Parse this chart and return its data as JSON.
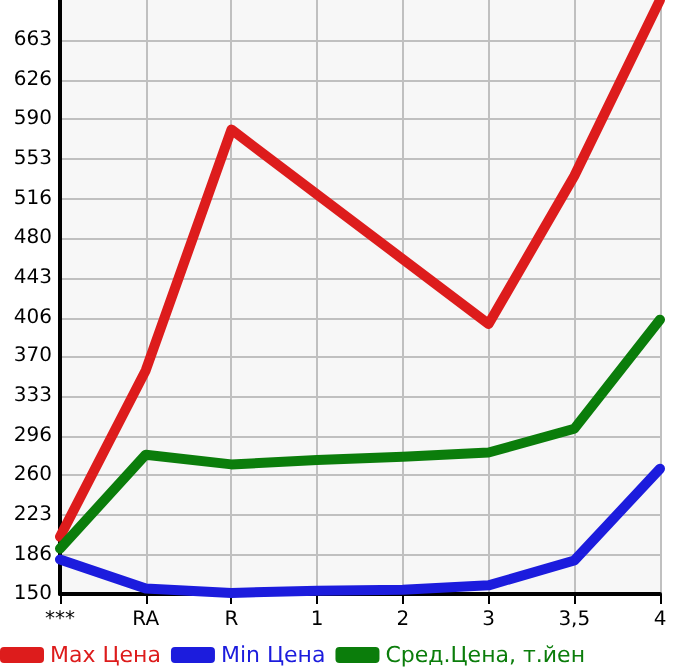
{
  "chart_data": {
    "type": "line",
    "categories": [
      "***",
      "RA",
      "R",
      "1",
      "2",
      "3",
      "3,5",
      "4"
    ],
    "series": [
      {
        "name": "Max Цена",
        "color": "#dd1c1c",
        "values": [
          203,
          357,
          580,
          520,
          460,
          400,
          537,
          700
        ]
      },
      {
        "name": "Min Цена",
        "color": "#1c1cdd",
        "values": [
          182,
          155,
          151,
          153,
          154,
          158,
          181,
          266
        ]
      },
      {
        "name": "Сред.Цена, т.йен",
        "color": "#0b7d0b",
        "values": [
          192,
          279,
          270,
          274,
          277,
          281,
          303,
          404
        ]
      }
    ],
    "ylim": [
      150,
      700
    ],
    "yticks": [
      150,
      186,
      223,
      260,
      296,
      333,
      370,
      406,
      443,
      480,
      516,
      553,
      590,
      626,
      663
    ],
    "grid": true,
    "legend": "bottom",
    "marker": "none",
    "line_style": "solid"
  }
}
